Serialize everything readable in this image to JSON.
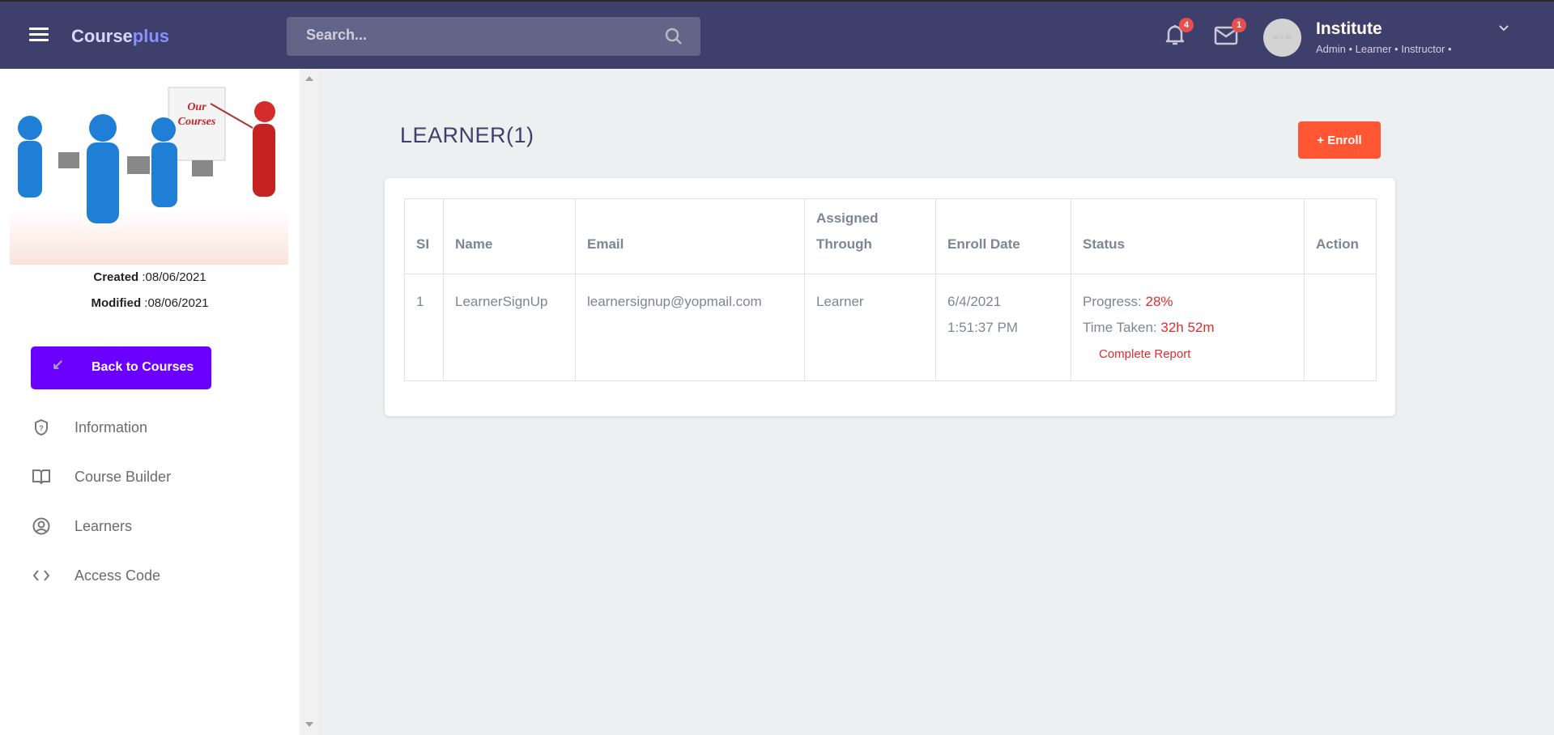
{
  "header": {
    "brand_main": "Course",
    "brand_accent": "plus",
    "search_placeholder": "Search...",
    "notifications_count": "4",
    "messages_count": "1",
    "avatar_placeholder": "50 x 50",
    "user_name": "Institute",
    "user_roles": "Admin • Learner • Instructor •"
  },
  "sidebar": {
    "image_lettering": "Our Courses",
    "created_label": "Created",
    "created_value": ":08/06/2021",
    "modified_label": "Modified",
    "modified_value": ":08/06/2021",
    "back_label": "Back to Courses",
    "items": [
      {
        "label": "Information",
        "icon": "shield-question-icon"
      },
      {
        "label": "Course Builder",
        "icon": "book-open-icon"
      },
      {
        "label": "Learners",
        "icon": "user-circle-icon"
      },
      {
        "label": "Access Code",
        "icon": "code-icon"
      }
    ]
  },
  "main": {
    "title": "LEARNER(1)",
    "enroll_label": "+ Enroll",
    "table": {
      "headers": [
        "SI",
        "Name",
        "Email",
        "Assigned Through",
        "Enroll Date",
        "Status",
        "Action"
      ],
      "rows": [
        {
          "si": "1",
          "name": "LearnerSignUp",
          "email": "learnersignup@yopmail.com",
          "assigned": "Learner",
          "date": "6/4/2021",
          "time": "1:51:37 PM",
          "progress_label": "Progress:",
          "progress": "28%",
          "time_label": "Time Taken:",
          "time_taken": "32h 52m",
          "report": "Complete Report",
          "action": ""
        }
      ]
    }
  },
  "colors": {
    "header": "#3f3f6b",
    "back_button": "#6c00ff",
    "enroll_button": "#ff5733",
    "status_red": "#e02d2d"
  }
}
